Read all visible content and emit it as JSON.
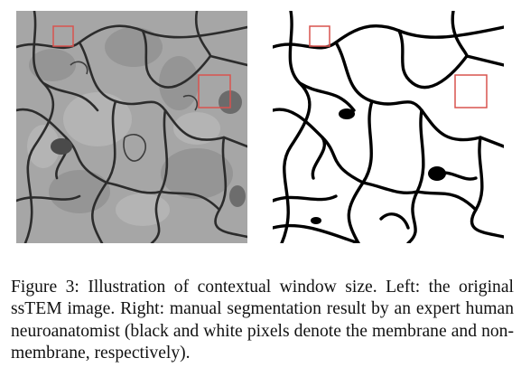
{
  "figure": {
    "caption": "Figure 3: Illustration of contextual window size. Left: the original ssTEM image. Right: manual segmentation result by an expert human neuroanatomist (black and white pixels denote the membrane and non-membrane, respectively).",
    "left_panel": {
      "content": "ssTEM image",
      "background_color": "#a6a6a6",
      "membrane_color": "#2c2c2c"
    },
    "right_panel": {
      "content": "manual segmentation",
      "background_color": "#ffffff",
      "membrane_color": "#000000"
    },
    "window_box_color": "#d9534f"
  }
}
